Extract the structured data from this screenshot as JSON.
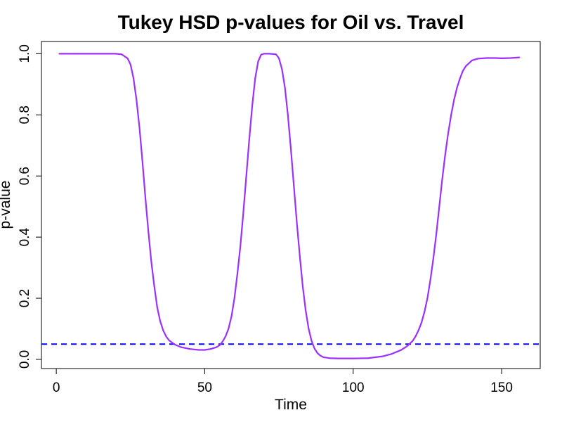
{
  "chart_data": {
    "type": "line",
    "title": "Tukey HSD p-values for Oil vs. Travel",
    "xlabel": "Time",
    "ylabel": "p-value",
    "xlim": [
      -5,
      163
    ],
    "ylim": [
      -0.03,
      1.04
    ],
    "xticks": [
      0,
      50,
      100,
      150
    ],
    "yticks": [
      0.0,
      0.2,
      0.4,
      0.6,
      0.8,
      1.0
    ],
    "xtick_labels": [
      "0",
      "50",
      "100",
      "150"
    ],
    "ytick_labels": [
      "0.0",
      "0.2",
      "0.4",
      "0.6",
      "0.8",
      "1.0"
    ],
    "grid": false,
    "series": [
      {
        "name": "p-value",
        "color": "#9b30ff",
        "x": [
          1,
          5,
          10,
          15,
          20,
          22,
          24,
          25,
          26,
          27,
          28,
          29,
          30,
          31,
          32,
          33,
          34,
          35,
          36,
          37,
          38,
          40,
          42,
          45,
          48,
          50,
          52,
          54,
          55,
          56,
          57,
          58,
          59,
          60,
          61,
          62,
          63,
          64,
          65,
          66,
          67,
          68,
          69,
          70,
          72,
          74,
          75,
          76,
          77,
          78,
          79,
          80,
          81,
          82,
          83,
          84,
          85,
          86,
          87,
          88,
          89,
          90,
          92,
          95,
          100,
          105,
          110,
          113,
          116,
          118,
          120,
          121,
          122,
          123,
          124,
          125,
          126,
          127,
          128,
          129,
          130,
          131,
          132,
          133,
          134,
          135,
          136,
          137,
          138,
          140,
          142,
          145,
          148,
          150,
          153,
          156
        ],
        "y": [
          1.0,
          1.0,
          1.0,
          1.0,
          1.0,
          0.998,
          0.985,
          0.965,
          0.92,
          0.85,
          0.76,
          0.65,
          0.53,
          0.42,
          0.32,
          0.24,
          0.17,
          0.125,
          0.095,
          0.075,
          0.062,
          0.048,
          0.04,
          0.034,
          0.031,
          0.031,
          0.034,
          0.04,
          0.046,
          0.058,
          0.075,
          0.1,
          0.14,
          0.2,
          0.28,
          0.37,
          0.48,
          0.6,
          0.72,
          0.83,
          0.92,
          0.975,
          0.997,
          1.0,
          1.0,
          0.998,
          0.985,
          0.95,
          0.89,
          0.8,
          0.69,
          0.57,
          0.45,
          0.34,
          0.24,
          0.16,
          0.1,
          0.06,
          0.035,
          0.02,
          0.012,
          0.007,
          0.004,
          0.003,
          0.003,
          0.004,
          0.01,
          0.018,
          0.03,
          0.042,
          0.06,
          0.075,
          0.095,
          0.12,
          0.155,
          0.2,
          0.26,
          0.33,
          0.41,
          0.5,
          0.59,
          0.67,
          0.74,
          0.8,
          0.85,
          0.89,
          0.92,
          0.945,
          0.96,
          0.978,
          0.984,
          0.986,
          0.986,
          0.985,
          0.986,
          0.988
        ]
      }
    ],
    "reference_line": {
      "y": 0.05,
      "color": "#0000ff",
      "style": "dashed"
    }
  }
}
